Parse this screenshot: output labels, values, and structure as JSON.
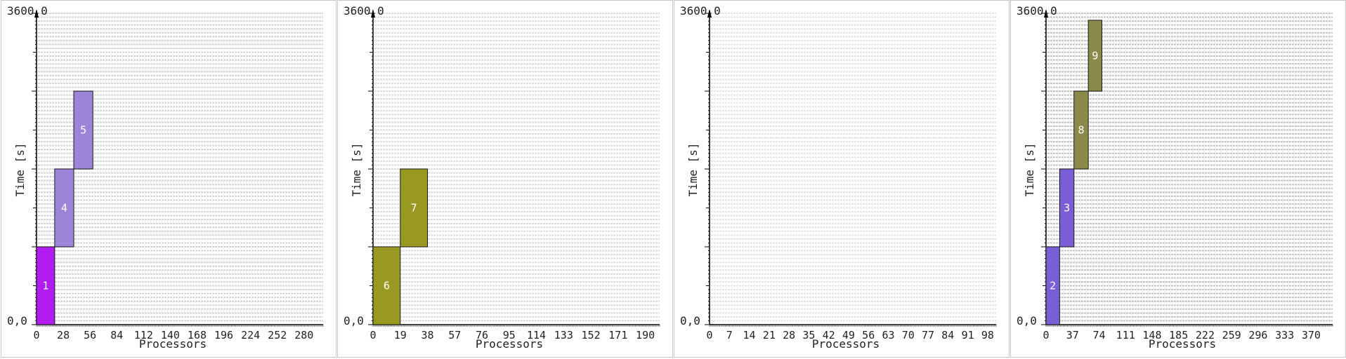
{
  "chart_data": [
    {
      "type": "bar",
      "ymax_label": "3600,0",
      "origin_label": "0,0",
      "xlabel": "Processors",
      "ylabel": "Time [s]",
      "xlim": [
        0,
        300
      ],
      "ylim": [
        0,
        3600
      ],
      "xticks": [
        "0",
        "28",
        "56",
        "84",
        "112",
        "140",
        "168",
        "196",
        "224",
        "252",
        "280"
      ],
      "grid_color": "#d4d4d4",
      "jobs": [
        {
          "label": "1",
          "proc_start": 0,
          "procs": 19,
          "t_start": 0,
          "t_end": 900,
          "color": "#b01cf2"
        },
        {
          "label": "4",
          "proc_start": 19,
          "procs": 20,
          "t_start": 900,
          "t_end": 1800,
          "color": "#9c84d8"
        },
        {
          "label": "5",
          "proc_start": 39,
          "procs": 20,
          "t_start": 1800,
          "t_end": 2700,
          "color": "#9c84d8"
        }
      ]
    },
    {
      "type": "bar",
      "ymax_label": "3600,0",
      "origin_label": "0,0",
      "xlabel": "Processors",
      "ylabel": "Time [s]",
      "xlim": [
        0,
        200
      ],
      "ylim": [
        0,
        3600
      ],
      "xticks": [
        "0",
        "19",
        "38",
        "57",
        "76",
        "95",
        "114",
        "133",
        "152",
        "171",
        "190"
      ],
      "grid_color": "#dcdcdc",
      "jobs": [
        {
          "label": "6",
          "proc_start": 0,
          "procs": 19,
          "t_start": 0,
          "t_end": 900,
          "color": "#999922"
        },
        {
          "label": "7",
          "proc_start": 19,
          "procs": 19,
          "t_start": 900,
          "t_end": 1800,
          "color": "#999922"
        }
      ]
    },
    {
      "type": "bar",
      "ymax_label": "3600,0",
      "origin_label": "0,0",
      "xlabel": "Processors",
      "ylabel": "Time [s]",
      "xlim": [
        0,
        101
      ],
      "ylim": [
        0,
        3600
      ],
      "xticks": [
        "0",
        "7",
        "14",
        "21",
        "28",
        "35",
        "42",
        "49",
        "56",
        "63",
        "70",
        "77",
        "84",
        "91",
        "98"
      ],
      "grid_color": "#e4e4e4",
      "jobs": []
    },
    {
      "type": "bar",
      "ymax_label": "3600,0",
      "origin_label": "0,0",
      "xlabel": "Processors",
      "ylabel": "Time [s]",
      "xlim": [
        0,
        400
      ],
      "ylim": [
        0,
        3600
      ],
      "xticks": [
        "0",
        "37",
        "74",
        "111",
        "148",
        "185",
        "222",
        "259",
        "296",
        "333",
        "370"
      ],
      "grid_color": "#c4c4c4",
      "jobs": [
        {
          "label": "2",
          "proc_start": 0,
          "procs": 19,
          "t_start": 0,
          "t_end": 900,
          "color": "#7a5ed6"
        },
        {
          "label": "3",
          "proc_start": 19,
          "procs": 20,
          "t_start": 900,
          "t_end": 1800,
          "color": "#7a5ed6"
        },
        {
          "label": "8",
          "proc_start": 39,
          "procs": 20,
          "t_start": 1800,
          "t_end": 2700,
          "color": "#8c8a4a"
        },
        {
          "label": "9",
          "proc_start": 59,
          "procs": 19,
          "t_start": 2700,
          "t_end": 3520,
          "color": "#8c8a4a"
        }
      ]
    }
  ]
}
